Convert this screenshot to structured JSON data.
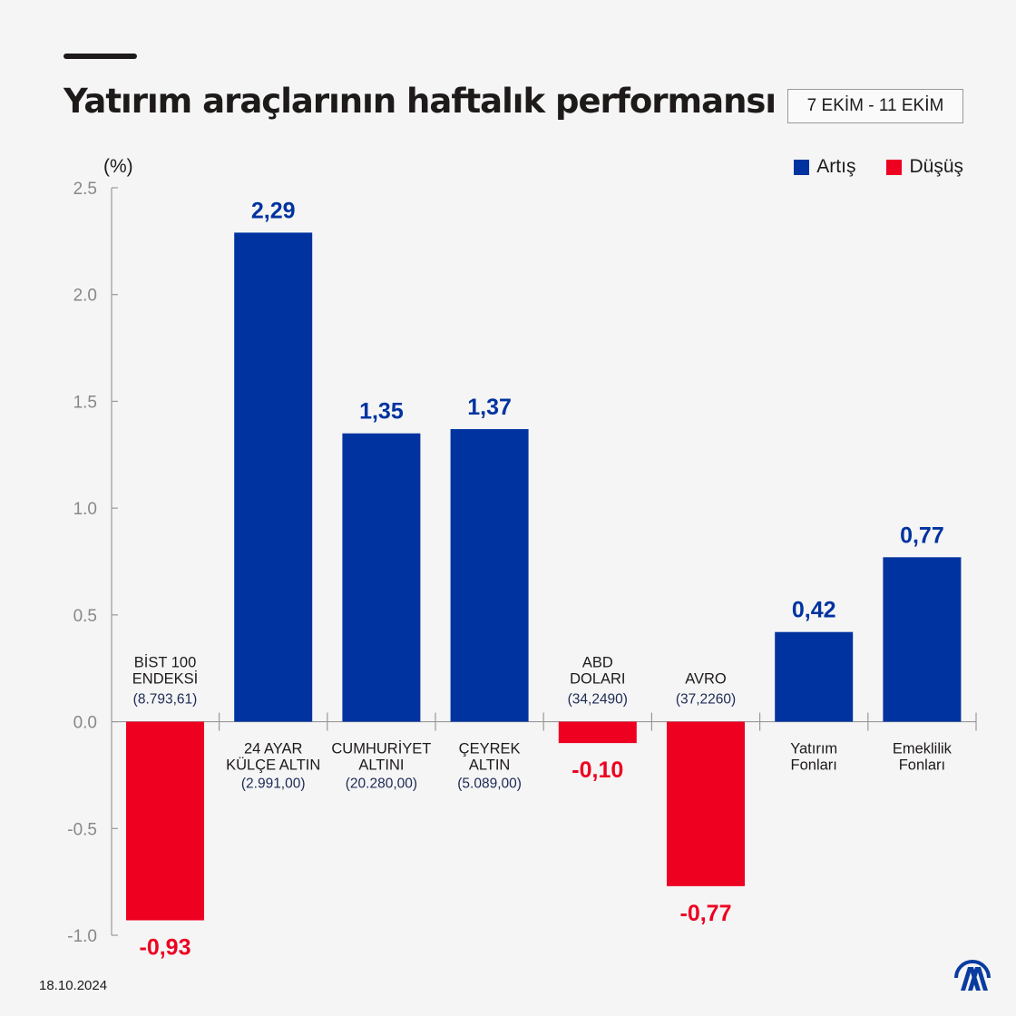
{
  "title": "Yatırım araçlarının haftalık performansı",
  "date_range": "7 EKİM - 11 EKİM",
  "footer_date": "18.10.2024",
  "logo_text": "AA",
  "colors": {
    "increase": "#0033a0",
    "decrease": "#ee0020",
    "sublabel": "#1c2a55"
  },
  "chart_data": {
    "type": "bar",
    "ylabel": "(%)",
    "ylim": [
      -1.0,
      2.5
    ],
    "yticks": [
      "2.5",
      "2.0",
      "1.5",
      "1.0",
      "0.5",
      "0.0",
      "-0.5",
      "-1.0"
    ],
    "ytick_values": [
      2.5,
      2.0,
      1.5,
      1.0,
      0.5,
      0.0,
      -0.5,
      -1.0
    ],
    "legend": [
      {
        "name": "Artış",
        "color": "#0033a0"
      },
      {
        "name": "Düşüş",
        "color": "#ee0020"
      }
    ],
    "legend_position": "top-right",
    "grid": false,
    "categories": [
      {
        "lines": [
          "BİST 100",
          "ENDEKSİ"
        ],
        "sub": "(8.793,61)",
        "value": -0.93,
        "label": "-0,93"
      },
      {
        "lines": [
          "24 AYAR",
          "KÜLÇE ALTIN"
        ],
        "sub": "(2.991,00)",
        "value": 2.29,
        "label": "2,29"
      },
      {
        "lines": [
          "CUMHURİYET",
          "ALTINI"
        ],
        "sub": "(20.280,00)",
        "value": 1.35,
        "label": "1,35"
      },
      {
        "lines": [
          "ÇEYREK",
          "ALTIN"
        ],
        "sub": "(5.089,00)",
        "value": 1.37,
        "label": "1,37"
      },
      {
        "lines": [
          "ABD",
          "DOLARI"
        ],
        "sub": "(34,2490)",
        "value": -0.1,
        "label": "-0,10"
      },
      {
        "lines": [
          "AVRO"
        ],
        "sub": "(37,2260)",
        "value": -0.77,
        "label": "-0,77"
      },
      {
        "lines": [
          "Yatırım",
          "Fonları"
        ],
        "sub": "",
        "value": 0.42,
        "label": "0,42"
      },
      {
        "lines": [
          "Emeklilik",
          "Fonları"
        ],
        "sub": "",
        "value": 0.77,
        "label": "0,77"
      }
    ]
  }
}
